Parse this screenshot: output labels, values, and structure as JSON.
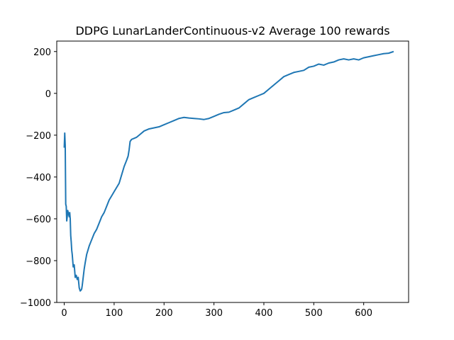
{
  "chart_data": {
    "type": "line",
    "title": "DDPG LunarLanderContinuous-v2 Average 100 rewards",
    "xlabel": "",
    "ylabel": "",
    "xlim": [
      -15,
      690
    ],
    "ylim": [
      -1000,
      250
    ],
    "xticks": [
      0,
      100,
      200,
      300,
      400,
      500,
      600
    ],
    "yticks": [
      -1000,
      -800,
      -600,
      -400,
      -200,
      0,
      200
    ],
    "grid": false,
    "line_color": "#1f77b4",
    "series": [
      {
        "x": [
          0,
          1,
          2,
          3,
          4,
          5,
          6,
          7,
          8,
          9,
          10,
          11,
          12,
          13,
          14,
          15,
          16,
          18,
          20,
          22,
          24,
          26,
          28,
          30,
          32,
          34,
          35,
          36,
          38,
          40,
          42,
          45,
          50,
          55,
          60,
          65,
          70,
          75,
          80,
          85,
          90,
          95,
          100,
          105,
          110,
          115,
          120,
          125,
          128,
          130,
          132,
          135,
          140,
          145,
          150,
          160,
          170,
          180,
          190,
          200,
          210,
          220,
          230,
          240,
          250,
          260,
          270,
          280,
          290,
          300,
          310,
          320,
          330,
          340,
          350,
          360,
          370,
          380,
          390,
          400,
          410,
          420,
          430,
          440,
          450,
          460,
          470,
          480,
          490,
          500,
          510,
          520,
          530,
          540,
          550,
          560,
          570,
          580,
          590,
          600,
          610,
          620,
          630,
          640,
          650,
          660
        ],
        "y": [
          -260,
          -190,
          -250,
          -530,
          -540,
          -610,
          -590,
          -560,
          -570,
          -580,
          -590,
          -570,
          -600,
          -680,
          -710,
          -750,
          -770,
          -830,
          -820,
          -880,
          -870,
          -890,
          -880,
          -930,
          -945,
          -940,
          -935,
          -920,
          -880,
          -840,
          -810,
          -770,
          -730,
          -700,
          -670,
          -650,
          -620,
          -590,
          -570,
          -540,
          -510,
          -490,
          -470,
          -450,
          -430,
          -390,
          -350,
          -320,
          -300,
          -270,
          -230,
          -220,
          -215,
          -210,
          -200,
          -180,
          -170,
          -165,
          -160,
          -150,
          -140,
          -130,
          -120,
          -115,
          -118,
          -120,
          -122,
          -125,
          -120,
          -110,
          -100,
          -92,
          -90,
          -80,
          -70,
          -50,
          -30,
          -20,
          -10,
          0,
          20,
          40,
          60,
          80,
          90,
          100,
          105,
          110,
          125,
          130,
          140,
          135,
          145,
          150,
          160,
          165,
          160,
          165,
          160,
          170,
          175,
          180,
          185,
          190,
          192,
          200
        ]
      }
    ]
  }
}
